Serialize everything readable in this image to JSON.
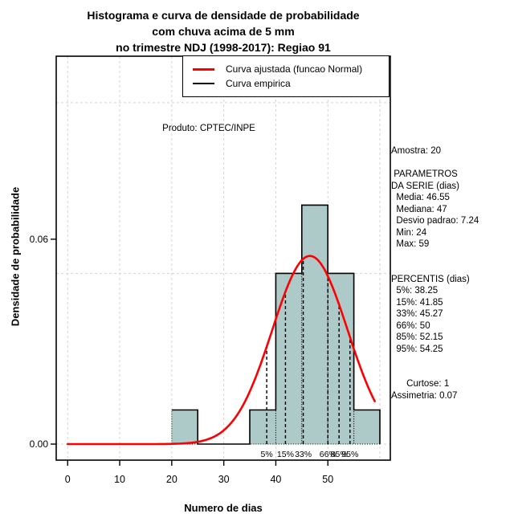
{
  "title": {
    "lines": [
      "Histograma e curva de densidade de probabilidade",
      "com chuva acima de 5 mm",
      "no trimestre NDJ (1998-2017): Regiao 91"
    ]
  },
  "legend": {
    "items": [
      {
        "name": "fitted",
        "label": "Curva ajustada (funcao Normal)",
        "color": "#ff0000"
      },
      {
        "name": "empirical",
        "label": "Curva empirica",
        "color": "#000000"
      }
    ]
  },
  "watermark": "Produto: CPTEC/INPE",
  "stats_panel": {
    "lines": [
      "Amostra: 20",
      "",
      " PARAMETROS",
      "DA SERIE (dias)",
      "  Media: 46.55",
      "  Mediana: 47",
      "  Desvio padrao: 7.24",
      "  Min: 24",
      "  Max: 59",
      "",
      "",
      "PERCENTIS (dias)",
      "  5%: 38.25",
      "  15%: 41.85",
      "  33%: 45.27",
      "  66%: 50",
      "  85%: 52.15",
      "  95%: 54.25",
      "",
      "",
      "      Curtose: 1",
      "Assimetria: 0.07"
    ]
  },
  "chart_data": {
    "type": "bar",
    "subtype": "histogram-with-density",
    "title": "Histograma e curva de densidade de probabilidade com chuva acima de 5 mm no trimestre NDJ (1998-2017): Regiao 91",
    "xlabel": "Numero de dias",
    "ylabel": "Densidade de probabilidade",
    "xlim": [
      -2.2,
      62.0
    ],
    "ylim": [
      -0.0047,
      0.1136
    ],
    "x_ticks": [
      0,
      10,
      20,
      30,
      40,
      50
    ],
    "y_ticks": [
      {
        "value": 0.0,
        "label": "0.00"
      },
      {
        "value": 0.06,
        "label": "0.06"
      }
    ],
    "grid": {
      "x": [
        0,
        10,
        20,
        30,
        40,
        50,
        60
      ],
      "y": [
        0.0,
        0.05,
        0.1
      ]
    },
    "bars": [
      {
        "x0": 20,
        "x1": 25,
        "density": 0.01
      },
      {
        "x0": 35,
        "x1": 40,
        "density": 0.01
      },
      {
        "x0": 40,
        "x1": 45,
        "density": 0.05
      },
      {
        "x0": 45,
        "x1": 50,
        "density": 0.07
      },
      {
        "x0": 50,
        "x1": 55,
        "density": 0.05
      },
      {
        "x0": 55,
        "x1": 60,
        "density": 0.01
      }
    ],
    "empirical_curve": [
      [
        20,
        0.01
      ],
      [
        25,
        0.01
      ],
      [
        25,
        0.0
      ],
      [
        35,
        0.0
      ],
      [
        35,
        0.01
      ],
      [
        40,
        0.01
      ],
      [
        40,
        0.05
      ],
      [
        45,
        0.05
      ],
      [
        45,
        0.07
      ],
      [
        50,
        0.07
      ],
      [
        50,
        0.05
      ],
      [
        55,
        0.05
      ],
      [
        55,
        0.01
      ],
      [
        60,
        0.01
      ],
      [
        60,
        0.0
      ]
    ],
    "normal_fit": {
      "mean": 46.55,
      "sd": 7.24,
      "x_range": [
        0,
        59
      ]
    },
    "percentiles": [
      {
        "label": "5%",
        "x": 38.25
      },
      {
        "label": "15%",
        "x": 41.85
      },
      {
        "label": "33%",
        "x": 45.27
      },
      {
        "label": "66%",
        "x": 50
      },
      {
        "label": "85%",
        "x": 52.15
      },
      {
        "label": "95%",
        "x": 54.25
      }
    ],
    "colors": {
      "bar_fill": "#aecac8",
      "bar_border": "#000000",
      "fitted_curve": "#ff0000",
      "empirical_curve": "#000000",
      "grid": "#d4d4d4",
      "axis": "#000000"
    }
  }
}
